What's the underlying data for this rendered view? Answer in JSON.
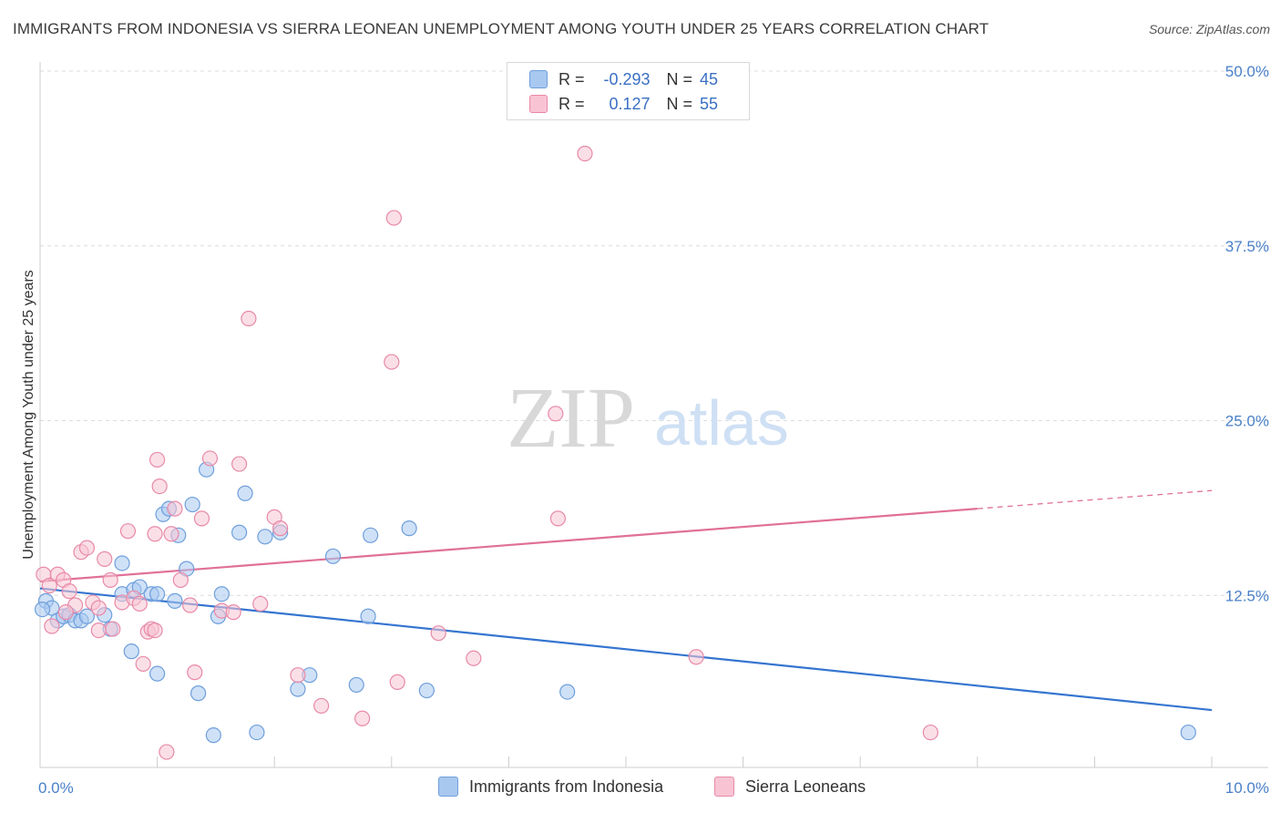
{
  "title": "IMMIGRANTS FROM INDONESIA VS SIERRA LEONEAN UNEMPLOYMENT AMONG YOUTH UNDER 25 YEARS CORRELATION CHART",
  "source": "Source: ZipAtlas.com",
  "watermark": {
    "zip": "ZIP",
    "atlas": "atlas"
  },
  "legend": {
    "rows": [
      {
        "r_label": "R =",
        "r_value": "-0.293",
        "n_label": "N =",
        "n_value": "45",
        "color": "#a8c8f0",
        "border": "#6f9fdc"
      },
      {
        "r_label": "R =",
        "r_value": "0.127",
        "n_label": "N =",
        "n_value": "55",
        "color": "#f8c4d4",
        "border": "#e88aa8"
      }
    ]
  },
  "bottom_legend": [
    {
      "label": "Immigrants from Indonesia",
      "color": "#a8c8f0",
      "border": "#6f9fdc"
    },
    {
      "label": "Sierra Leoneans",
      "color": "#f8c4d4",
      "border": "#e88aa8"
    }
  ],
  "chart_data": {
    "type": "scatter",
    "title": "IMMIGRANTS FROM INDONESIA VS SIERRA LEONEAN UNEMPLOYMENT AMONG YOUTH UNDER 25 YEARS CORRELATION CHART",
    "xlabel": "",
    "ylabel": "Unemployment Among Youth under 25 years",
    "xlim": [
      0,
      10
    ],
    "ylim": [
      0,
      50
    ],
    "x_tick_labels": [
      {
        "value": 0,
        "label": "0.0%"
      },
      {
        "value": 10,
        "label": "10.0%"
      }
    ],
    "y_tick_labels": [
      {
        "value": 12.5,
        "label": "12.5%"
      },
      {
        "value": 25,
        "label": "25.0%"
      },
      {
        "value": 37.5,
        "label": "37.5%"
      },
      {
        "value": 50,
        "label": "50.0%"
      }
    ],
    "grid": true,
    "legend_position": "bottom-center",
    "series": [
      {
        "name": "Immigrants from Indonesia",
        "color": "#6f9fdc",
        "fill": "#a8c8f0",
        "trend": {
          "x": [
            0,
            10
          ],
          "y": [
            13.0,
            4.3
          ],
          "color": "#3575d0"
        },
        "points": [
          [
            0.05,
            12.1
          ],
          [
            0.1,
            11.6
          ],
          [
            0.15,
            10.7
          ],
          [
            0.2,
            11.0
          ],
          [
            0.25,
            11.1
          ],
          [
            0.3,
            10.7
          ],
          [
            0.35,
            10.7
          ],
          [
            0.4,
            11.0
          ],
          [
            0.55,
            11.1
          ],
          [
            0.6,
            10.1
          ],
          [
            0.7,
            12.6
          ],
          [
            0.7,
            14.8
          ],
          [
            0.8,
            12.9
          ],
          [
            0.85,
            13.1
          ],
          [
            0.95,
            12.6
          ],
          [
            1.0,
            12.6
          ],
          [
            0.78,
            8.5
          ],
          [
            1.0,
            6.9
          ],
          [
            1.05,
            18.3
          ],
          [
            1.1,
            18.7
          ],
          [
            1.18,
            16.8
          ],
          [
            1.15,
            12.1
          ],
          [
            1.25,
            14.4
          ],
          [
            1.3,
            19.0
          ],
          [
            1.35,
            5.5
          ],
          [
            1.42,
            21.5
          ],
          [
            1.48,
            2.5
          ],
          [
            1.52,
            11.0
          ],
          [
            1.55,
            12.6
          ],
          [
            1.7,
            17.0
          ],
          [
            1.75,
            19.8
          ],
          [
            1.85,
            2.7
          ],
          [
            1.92,
            16.7
          ],
          [
            2.05,
            17.0
          ],
          [
            2.2,
            5.8
          ],
          [
            2.3,
            6.8
          ],
          [
            2.5,
            15.3
          ],
          [
            2.7,
            6.1
          ],
          [
            2.8,
            11.0
          ],
          [
            2.82,
            16.8
          ],
          [
            3.15,
            17.3
          ],
          [
            3.3,
            5.7
          ],
          [
            4.5,
            5.6
          ],
          [
            9.8,
            2.7
          ],
          [
            0.02,
            11.5
          ]
        ]
      },
      {
        "name": "Sierra Leoneans",
        "color": "#e88aa8",
        "fill": "#f8c4d4",
        "trend": {
          "x": [
            0,
            8
          ],
          "y": [
            13.5,
            18.7
          ],
          "dashed_to": {
            "x": 10,
            "y": 20.0
          },
          "color": "#e07098"
        },
        "points": [
          [
            0.03,
            14.0
          ],
          [
            0.08,
            13.2
          ],
          [
            0.1,
            10.3
          ],
          [
            0.15,
            14.0
          ],
          [
            0.2,
            13.6
          ],
          [
            0.25,
            12.8
          ],
          [
            0.3,
            11.8
          ],
          [
            0.35,
            15.6
          ],
          [
            0.4,
            15.9
          ],
          [
            0.45,
            12.0
          ],
          [
            0.5,
            11.6
          ],
          [
            0.55,
            15.1
          ],
          [
            0.6,
            13.6
          ],
          [
            0.62,
            10.1
          ],
          [
            0.7,
            12.0
          ],
          [
            0.75,
            17.1
          ],
          [
            0.8,
            12.3
          ],
          [
            0.85,
            11.9
          ],
          [
            0.88,
            7.6
          ],
          [
            0.92,
            9.9
          ],
          [
            0.95,
            10.1
          ],
          [
            0.98,
            16.9
          ],
          [
            1.0,
            22.2
          ],
          [
            1.02,
            20.3
          ],
          [
            1.08,
            1.3
          ],
          [
            1.12,
            16.9
          ],
          [
            1.15,
            18.7
          ],
          [
            1.2,
            13.6
          ],
          [
            1.28,
            11.8
          ],
          [
            1.32,
            7.0
          ],
          [
            1.38,
            18.0
          ],
          [
            1.45,
            22.3
          ],
          [
            1.55,
            11.4
          ],
          [
            1.65,
            11.3
          ],
          [
            1.7,
            21.9
          ],
          [
            1.78,
            32.3
          ],
          [
            1.88,
            11.9
          ],
          [
            2.0,
            18.1
          ],
          [
            2.05,
            17.3
          ],
          [
            2.2,
            6.8
          ],
          [
            2.4,
            4.6
          ],
          [
            2.75,
            3.7
          ],
          [
            3.0,
            29.2
          ],
          [
            3.02,
            39.5
          ],
          [
            3.05,
            6.3
          ],
          [
            3.4,
            9.8
          ],
          [
            3.7,
            8.0
          ],
          [
            4.4,
            25.5
          ],
          [
            4.42,
            18.0
          ],
          [
            4.65,
            44.1
          ],
          [
            5.6,
            8.1
          ],
          [
            7.6,
            2.7
          ],
          [
            0.5,
            10.0
          ],
          [
            0.98,
            10.0
          ],
          [
            0.22,
            11.3
          ]
        ]
      }
    ]
  }
}
